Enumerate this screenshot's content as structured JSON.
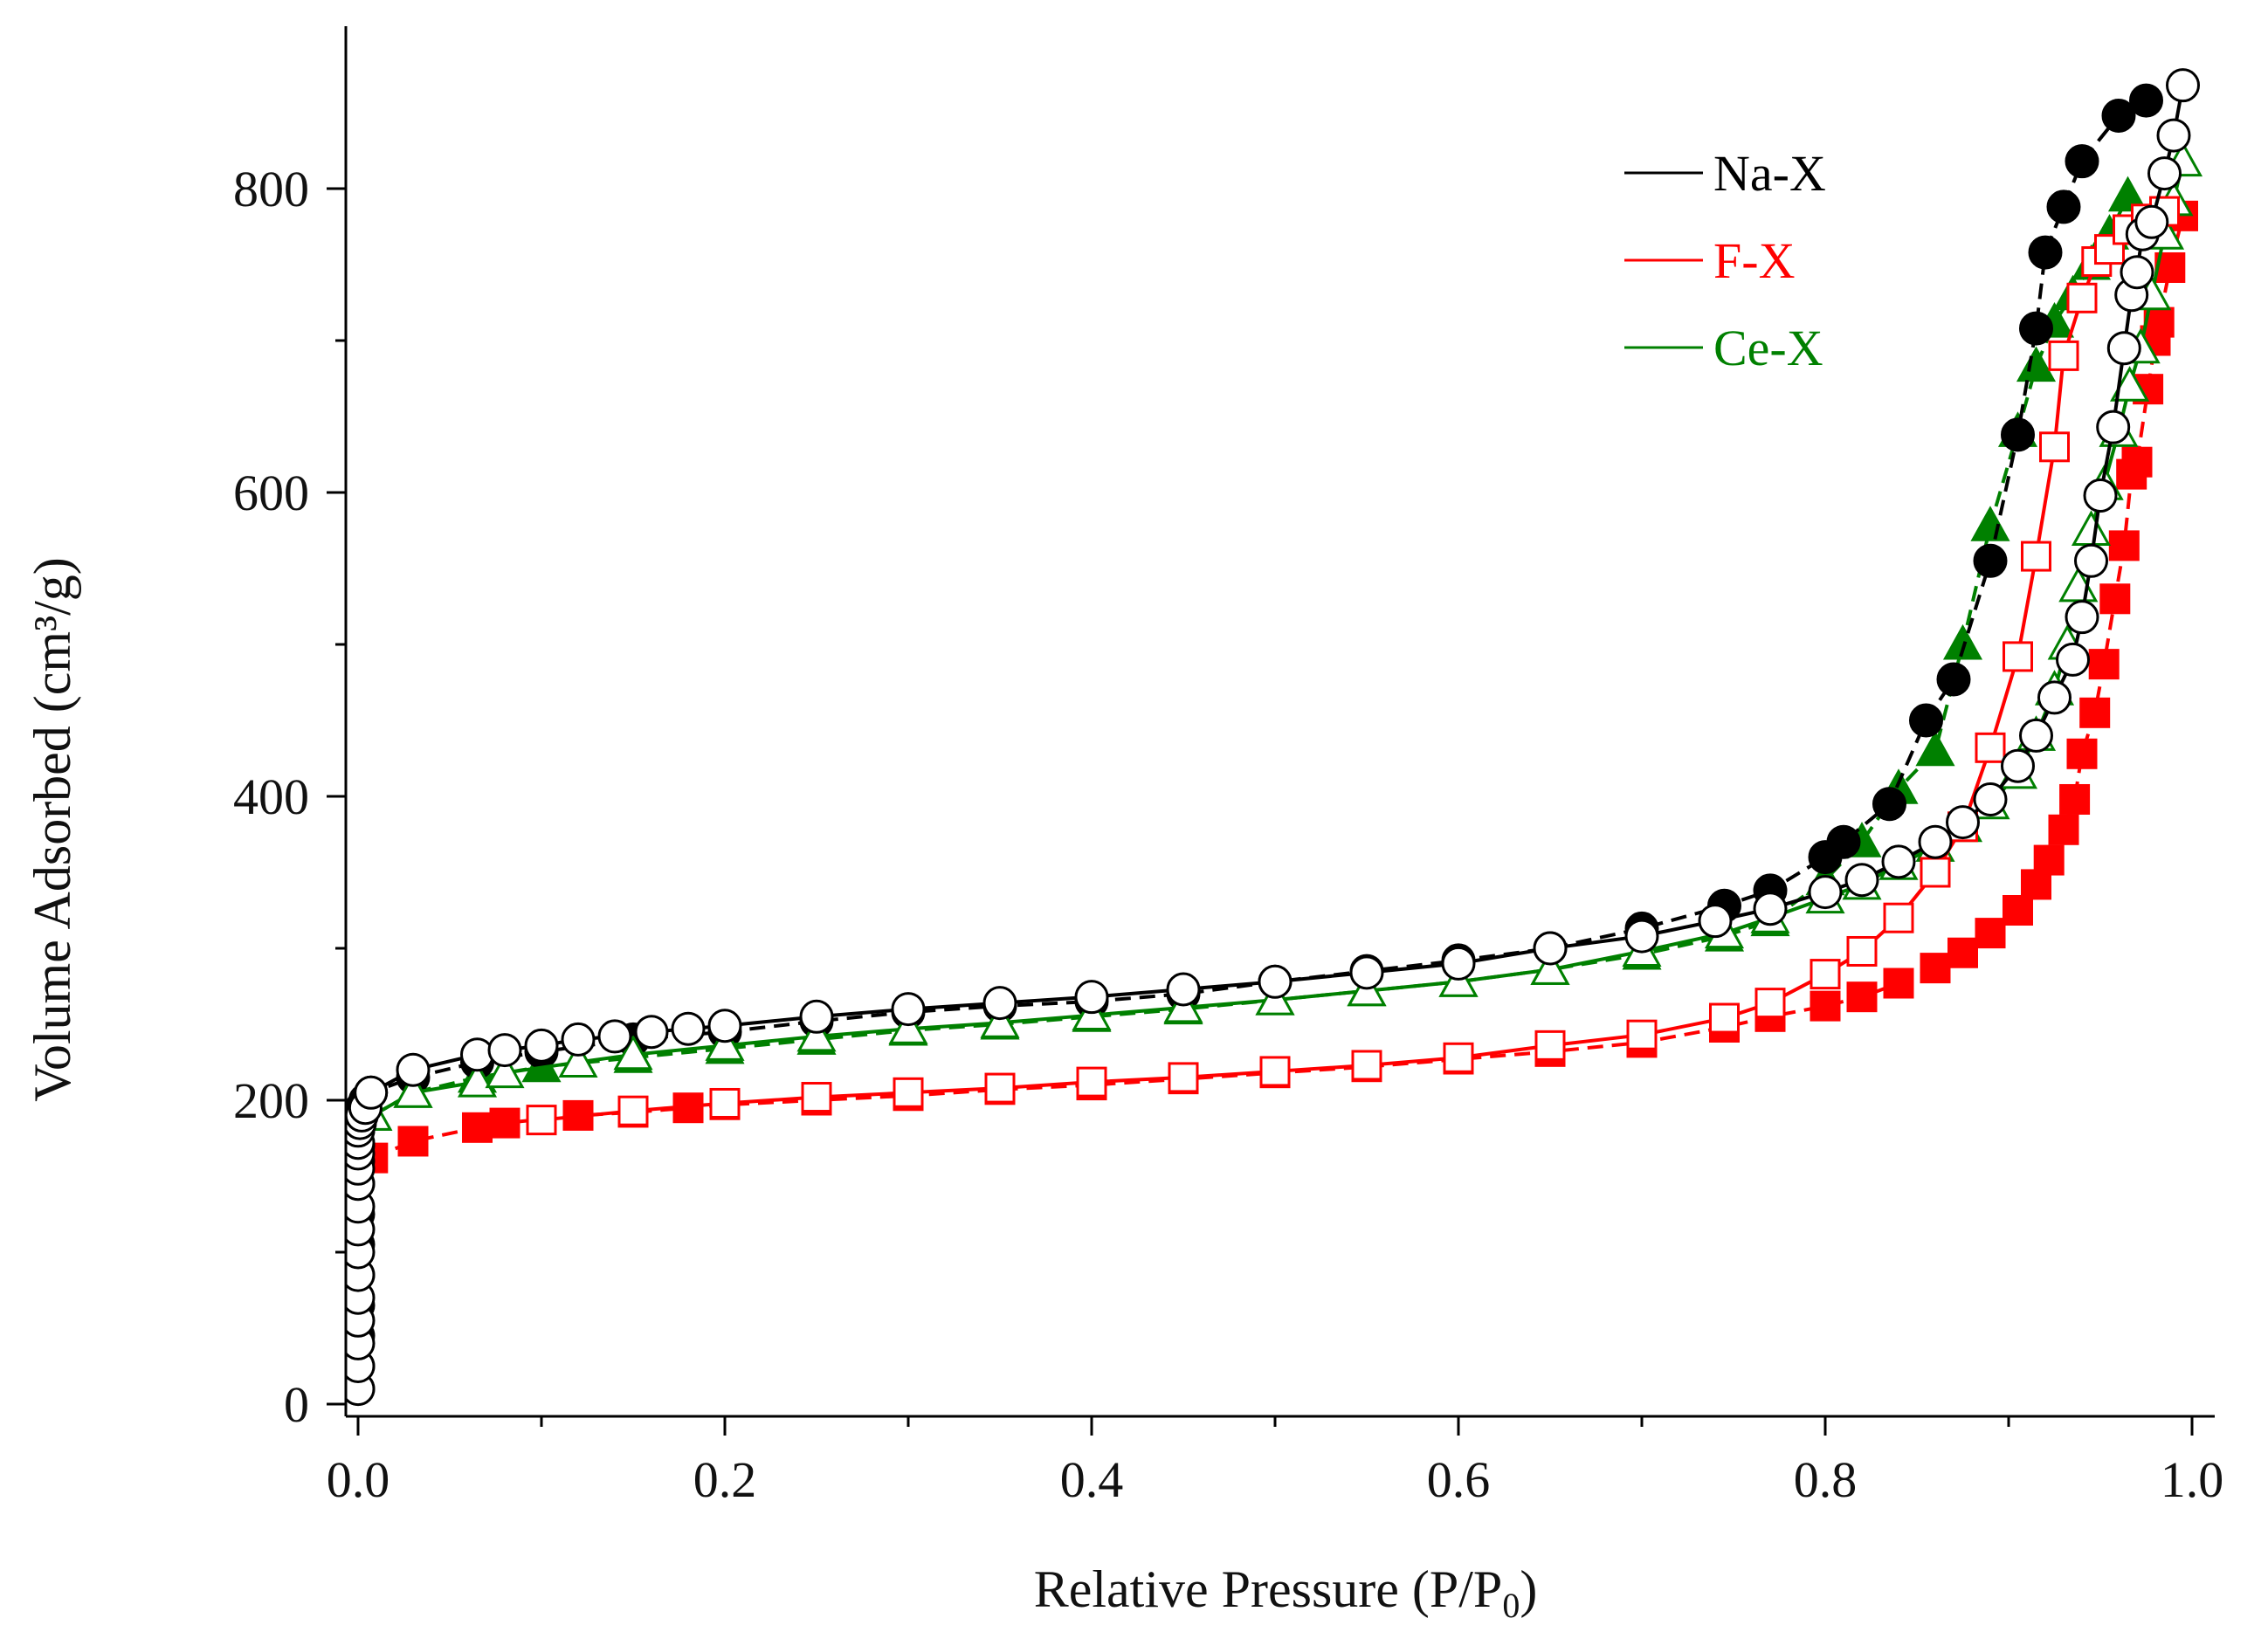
{
  "chart_data": {
    "type": "scatter",
    "title": "",
    "xlabel": "Relative Pressure (P/P",
    "xlabel_sub": "0",
    "xlabel_end": ")",
    "ylabel": "Volume Adsorbed (cm³/g)",
    "xlim": [
      -0.01,
      1.01
    ],
    "ylim": [
      0,
      900
    ],
    "x_ticks": [
      0.0,
      0.2,
      0.4,
      0.6,
      0.8,
      1.0
    ],
    "x_tick_labels": [
      "0.0",
      "0.2",
      "0.4",
      "0.6",
      "0.8",
      "1.0"
    ],
    "x_minor_ticks": [
      0.1,
      0.3,
      0.5,
      0.7,
      0.9
    ],
    "y_ticks": [
      0,
      200,
      400,
      600,
      800
    ],
    "y_tick_labels": [
      "0",
      "200",
      "400",
      "600",
      "800"
    ],
    "y_minor_ticks": [
      100,
      300,
      500,
      700
    ],
    "legend_position": "top-right",
    "legend": [
      {
        "label": "Na-X",
        "color": "#000000"
      },
      {
        "label": "F-X",
        "color": "#ff0000"
      },
      {
        "label": "Ce-X",
        "color": "#008000"
      }
    ],
    "series": [
      {
        "name": "Na-X adsorption",
        "color": "#000000",
        "marker": "circle",
        "filled": true,
        "dash": "18,10",
        "x": [
          0.0,
          0.0,
          0.0,
          0.0,
          0.0,
          0.0,
          0.0,
          0.0,
          0.0,
          0.0,
          0.0,
          0.0,
          0.001,
          0.002,
          0.004,
          0.007,
          0.03,
          0.065,
          0.1,
          0.15,
          0.2,
          0.25,
          0.3,
          0.35,
          0.4,
          0.45,
          0.5,
          0.55,
          0.6,
          0.65,
          0.7,
          0.745,
          0.77,
          0.8,
          0.81,
          0.835,
          0.855,
          0.87,
          0.89,
          0.905,
          0.915,
          0.92,
          0.93,
          0.94,
          0.96,
          0.975
        ],
        "y": [
          10,
          25,
          45,
          65,
          85,
          105,
          125,
          145,
          160,
          170,
          180,
          185,
          190,
          195,
          200,
          205,
          215,
          225,
          232,
          240,
          245,
          252,
          258,
          262,
          265,
          270,
          278,
          285,
          292,
          300,
          313,
          328,
          338,
          360,
          370,
          395,
          450,
          477,
          555,
          638,
          708,
          758,
          788,
          818,
          848,
          858
        ]
      },
      {
        "name": "Na-X desorption",
        "color": "#000000",
        "marker": "circle",
        "filled": false,
        "dash": "",
        "x": [
          0.0,
          0.0,
          0.0,
          0.0,
          0.0,
          0.0,
          0.0,
          0.0,
          0.0,
          0.0,
          0.0,
          0.0,
          0.0,
          0.0,
          0.001,
          0.002,
          0.004,
          0.007,
          0.03,
          0.065,
          0.08,
          0.1,
          0.12,
          0.14,
          0.16,
          0.18,
          0.2,
          0.25,
          0.3,
          0.35,
          0.4,
          0.45,
          0.5,
          0.55,
          0.6,
          0.65,
          0.7,
          0.74,
          0.77,
          0.8,
          0.82,
          0.84,
          0.86,
          0.875,
          0.89,
          0.905,
          0.915,
          0.925,
          0.935,
          0.94,
          0.945,
          0.95,
          0.957,
          0.963,
          0.967,
          0.97,
          0.973,
          0.978,
          0.985,
          0.99,
          0.995
        ],
        "y": [
          10,
          25,
          40,
          55,
          70,
          85,
          100,
          115,
          130,
          145,
          155,
          165,
          172,
          180,
          185,
          190,
          195,
          205,
          220,
          230,
          233,
          236,
          240,
          242,
          245,
          247,
          249,
          255,
          260,
          264,
          268,
          273,
          278,
          284,
          290,
          300,
          308,
          318,
          326,
          337,
          345,
          357,
          370,
          383,
          398,
          420,
          440,
          465,
          490,
          518,
          555,
          598,
          643,
          695,
          730,
          745,
          770,
          778,
          810,
          835,
          868
        ]
      },
      {
        "name": "F-X adsorption",
        "color": "#ff0000",
        "marker": "square",
        "filled": true,
        "dash": "18,10",
        "x": [
          0.008,
          0.03,
          0.065,
          0.08,
          0.12,
          0.15,
          0.18,
          0.2,
          0.25,
          0.3,
          0.35,
          0.4,
          0.45,
          0.5,
          0.55,
          0.6,
          0.65,
          0.7,
          0.745,
          0.77,
          0.8,
          0.82,
          0.84,
          0.86,
          0.875,
          0.89,
          0.905,
          0.915,
          0.922,
          0.93,
          0.936,
          0.94,
          0.947,
          0.952,
          0.958,
          0.963,
          0.967,
          0.97,
          0.976,
          0.98,
          0.982,
          0.988,
          0.995
        ],
        "y": [
          162,
          173,
          182,
          185,
          190,
          192,
          195,
          197,
          200,
          203,
          207,
          210,
          214,
          218,
          222,
          227,
          232,
          238,
          248,
          255,
          262,
          268,
          277,
          287,
          297,
          310,
          325,
          342,
          358,
          378,
          398,
          428,
          455,
          487,
          530,
          565,
          612,
          620,
          668,
          700,
          712,
          748,
          782
        ]
      },
      {
        "name": "F-X desorption",
        "color": "#ff0000",
        "marker": "square",
        "filled": false,
        "dash": "",
        "x": [
          0.1,
          0.15,
          0.2,
          0.25,
          0.3,
          0.35,
          0.4,
          0.45,
          0.5,
          0.55,
          0.6,
          0.65,
          0.7,
          0.745,
          0.77,
          0.8,
          0.82,
          0.84,
          0.86,
          0.875,
          0.89,
          0.905,
          0.915,
          0.925,
          0.93,
          0.94,
          0.948,
          0.955,
          0.965,
          0.975,
          0.985
        ],
        "y": [
          187,
          193,
          198,
          202,
          205,
          208,
          212,
          215,
          219,
          223,
          228,
          236,
          243,
          254,
          264,
          283,
          298,
          320,
          350,
          380,
          432,
          492,
          558,
          630,
          690,
          728,
          752,
          760,
          773,
          780,
          785
        ]
      },
      {
        "name": "Ce-X adsorption",
        "color": "#008000",
        "marker": "triangle",
        "filled": true,
        "dash": "18,10",
        "x": [
          0.008,
          0.03,
          0.065,
          0.1,
          0.15,
          0.2,
          0.25,
          0.3,
          0.35,
          0.4,
          0.45,
          0.5,
          0.55,
          0.6,
          0.65,
          0.7,
          0.745,
          0.77,
          0.8,
          0.82,
          0.84,
          0.86,
          0.875,
          0.89,
          0.905,
          0.915,
          0.925,
          0.935,
          0.945,
          0.955,
          0.965
        ],
        "y": [
          190,
          205,
          215,
          222,
          228,
          234,
          240,
          246,
          250,
          255,
          260,
          266,
          272,
          278,
          286,
          296,
          308,
          318,
          345,
          370,
          405,
          430,
          500,
          578,
          640,
          683,
          712,
          730,
          750,
          770,
          795
        ]
      },
      {
        "name": "Ce-X desorption",
        "color": "#008000",
        "marker": "triangle",
        "filled": false,
        "dash": "",
        "x": [
          0.008,
          0.03,
          0.065,
          0.08,
          0.12,
          0.15,
          0.2,
          0.25,
          0.3,
          0.35,
          0.4,
          0.45,
          0.5,
          0.55,
          0.6,
          0.65,
          0.7,
          0.745,
          0.77,
          0.8,
          0.82,
          0.84,
          0.86,
          0.875,
          0.89,
          0.905,
          0.915,
          0.925,
          0.932,
          0.938,
          0.945,
          0.952,
          0.96,
          0.966,
          0.972,
          0.978,
          0.985,
          0.99,
          0.995
        ],
        "y": [
          190,
          205,
          212,
          218,
          225,
          230,
          236,
          242,
          247,
          251,
          256,
          261,
          266,
          272,
          278,
          286,
          298,
          310,
          320,
          333,
          342,
          355,
          367,
          380,
          395,
          415,
          440,
          470,
          500,
          538,
          575,
          605,
          640,
          670,
          695,
          730,
          770,
          792,
          818
        ]
      }
    ]
  }
}
